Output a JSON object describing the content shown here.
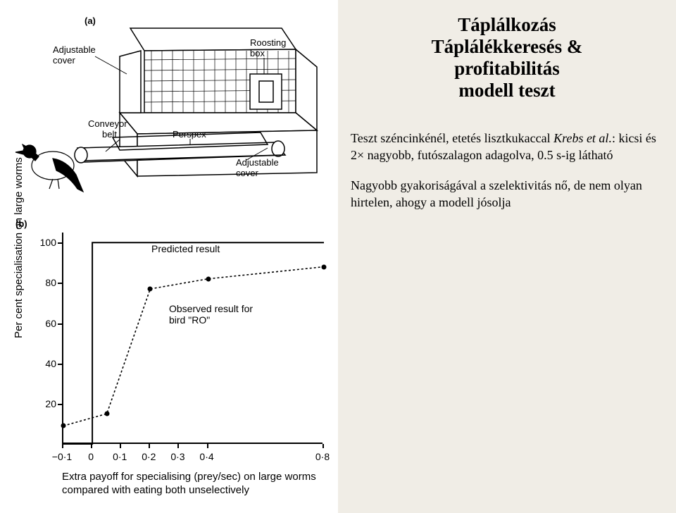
{
  "title": {
    "lines": [
      "Táplálkozás",
      "Táplálékkeresés &",
      "profitabilitás",
      "modell teszt"
    ],
    "fontsize": 27
  },
  "paragraphs": {
    "p1_pre": "Teszt széncinkénél, etetés lisztkukaccal ",
    "p1_italic": "Krebs et al.",
    "p1_post": ": kicsi és 2× nagyobb, futószalagon adagolva, 0.5 s-ig látható",
    "p2": "Nagyobb gyakoriságával a szelektivitás nő, de nem olyan hirtelen, ahogy a modell jósolja",
    "fontsize": 18
  },
  "figA": {
    "label": "(a)",
    "callouts": {
      "adjustable_cover": "Adjustable\ncover",
      "roosting_box": "Roosting\nbox",
      "conveyor_belt": "Conveyor\nbelt",
      "perspex": "Perspex",
      "adjustable_cover2": "Adjustable\ncover"
    }
  },
  "figB": {
    "label": "(b)",
    "chart": {
      "type": "line",
      "ylabel": "Per cent specialisation on large worms",
      "xlabel": "Extra payoff for specialising (prey/sec) on large worms compared with eating both unselectively",
      "ylim": [
        0,
        105
      ],
      "yticks": [
        20,
        40,
        60,
        80,
        100
      ],
      "xlim": [
        -0.1,
        0.8
      ],
      "xticks": [
        "−0·1",
        "0",
        "0·1",
        "0·2",
        "0·3",
        "0·4",
        "0·8"
      ],
      "xtick_vals": [
        -0.1,
        0,
        0.1,
        0.2,
        0.3,
        0.4,
        0.8
      ],
      "predicted": {
        "label": "Predicted result",
        "points": [
          [
            -0.1,
            0
          ],
          [
            0,
            0
          ],
          [
            0,
            100
          ],
          [
            0.8,
            100
          ]
        ],
        "stroke": "#000000",
        "stroke_width": 2
      },
      "observed": {
        "label": "Observed result for\nbird \"RO\"",
        "points": [
          [
            -0.1,
            9
          ],
          [
            0.05,
            15
          ],
          [
            0.2,
            77
          ],
          [
            0.4,
            82
          ],
          [
            0.8,
            88
          ]
        ],
        "stroke": "#000000",
        "dash": "3,3",
        "marker": "circle",
        "marker_size": 7
      },
      "font_family": "Arial, Helvetica, sans-serif",
      "axis_color": "#000000",
      "background": "#ffffff"
    }
  }
}
